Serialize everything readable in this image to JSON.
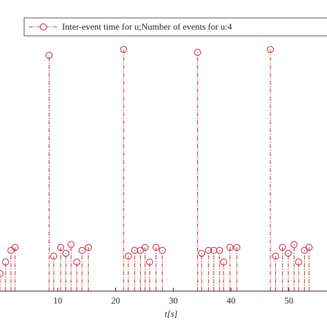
{
  "chart_data": {
    "type": "stem",
    "x_label": "t[s]",
    "xlim": [
      0,
      56.6
    ],
    "ylim": [
      0,
      1
    ],
    "xticks": [
      10,
      20,
      30,
      40,
      50
    ],
    "legend": "top-right",
    "series": [
      {
        "name": "Inter-event time for  u;Number of events for u:4",
        "color": "#c0303a",
        "x": [
          0,
          0.96,
          1.9,
          2.6,
          8.5,
          9.3,
          10.5,
          11.4,
          12.3,
          13.3,
          14.2,
          15.3,
          21.4,
          22.2,
          23.3,
          24.3,
          25.1,
          25.9,
          27.0,
          28.1,
          34.2,
          34.9,
          36.1,
          37.0,
          38.0,
          38.7,
          39.8,
          41.0,
          46.8,
          47.7,
          48.9,
          49.9,
          50.9,
          51.7,
          52.7,
          53.5
        ],
        "values": [
          0.06,
          0.1,
          0.14,
          0.15,
          0.81,
          0.12,
          0.15,
          0.13,
          0.16,
          0.1,
          0.14,
          0.15,
          0.83,
          0.12,
          0.14,
          0.14,
          0.15,
          0.1,
          0.15,
          0.14,
          0.82,
          0.13,
          0.14,
          0.14,
          0.14,
          0.1,
          0.15,
          0.15,
          0.83,
          0.12,
          0.15,
          0.13,
          0.16,
          0.1,
          0.14,
          0.15
        ]
      }
    ]
  }
}
